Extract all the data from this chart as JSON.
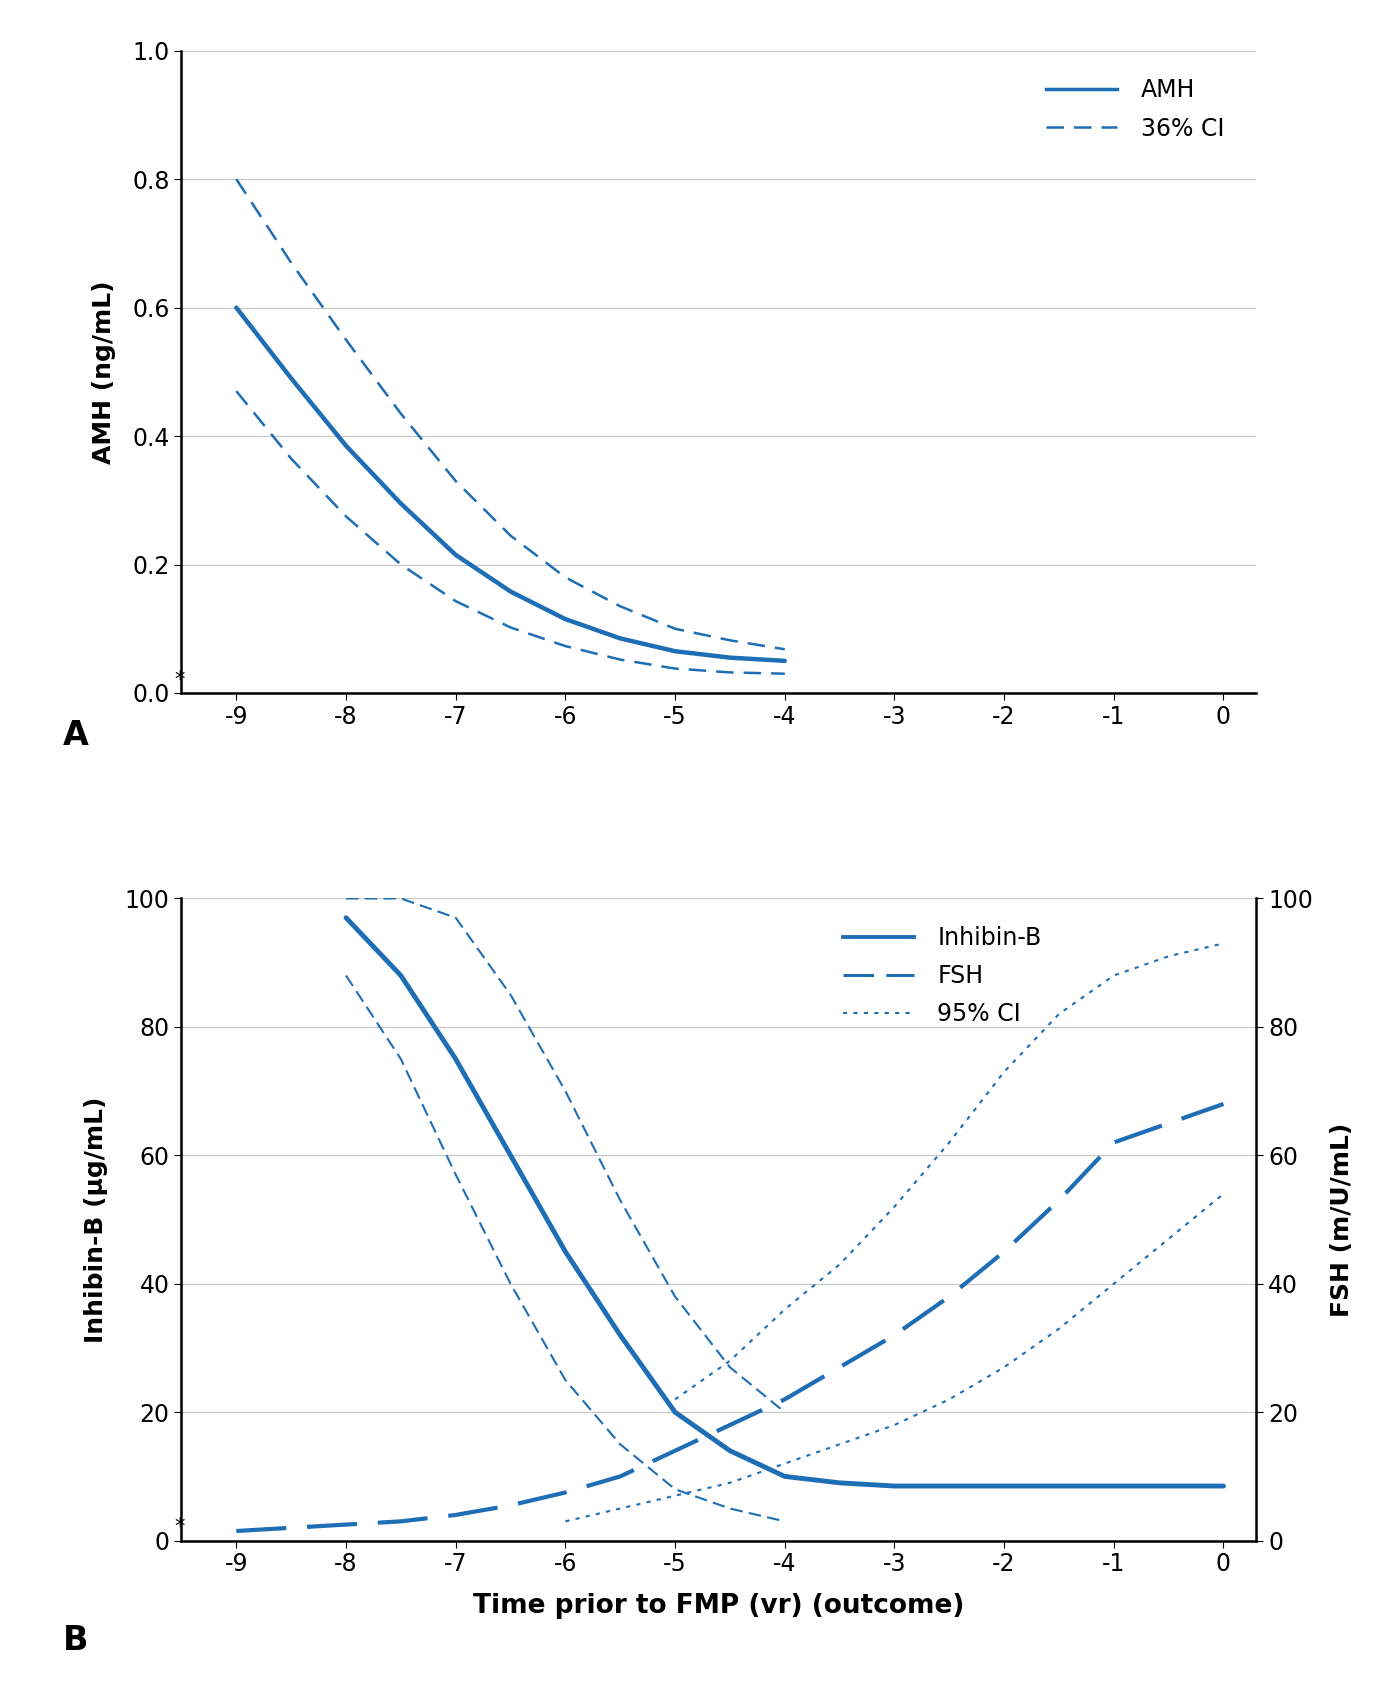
{
  "blue": "#1e6eb5",
  "panel_A": {
    "label": "A",
    "ylabel": "AMH (ng/mL)",
    "ylim": [
      0.0,
      1.0
    ],
    "yticks": [
      0.0,
      0.2,
      0.4,
      0.6,
      0.8,
      1.0
    ],
    "xlim": [
      -9.5,
      0.3
    ],
    "xticks": [
      -9,
      -8,
      -7,
      -6,
      -5,
      -4,
      -3,
      -2,
      -1,
      0
    ],
    "amh_x": [
      -9.0,
      -8.5,
      -8.0,
      -7.5,
      -7.0,
      -6.5,
      -6.0,
      -5.5,
      -5.0,
      -4.5,
      -4.0
    ],
    "amh_y": [
      0.6,
      0.49,
      0.385,
      0.295,
      0.215,
      0.158,
      0.115,
      0.085,
      0.065,
      0.055,
      0.05
    ],
    "ci_upper_x": [
      -9.0,
      -8.5,
      -8.0,
      -7.5,
      -7.0,
      -6.5,
      -6.0,
      -5.5,
      -5.0,
      -4.5,
      -4.0
    ],
    "ci_upper_y": [
      0.8,
      0.67,
      0.55,
      0.435,
      0.33,
      0.245,
      0.18,
      0.135,
      0.1,
      0.082,
      0.068
    ],
    "ci_lower_x": [
      -9.0,
      -8.5,
      -8.0,
      -7.5,
      -7.0,
      -6.5,
      -6.0,
      -5.5,
      -5.0,
      -4.5,
      -4.0
    ],
    "ci_lower_y": [
      0.47,
      0.365,
      0.275,
      0.2,
      0.143,
      0.102,
      0.073,
      0.052,
      0.038,
      0.032,
      0.03
    ],
    "legend_label_amh": "AMH",
    "legend_label_ci": "36% CI",
    "asterisk_text": "*"
  },
  "panel_B": {
    "label": "B",
    "ylabel_left": "Inhibin-B (µg/mL)",
    "ylabel_right": "FSH (m/U/mL)",
    "xlabel": "Time prior to FMP (vr) (outcome)",
    "ylim": [
      0.0,
      100.0
    ],
    "yticks": [
      0,
      20,
      40,
      60,
      80,
      100
    ],
    "xlim": [
      -9.5,
      0.3
    ],
    "xticks": [
      -9,
      -8,
      -7,
      -6,
      -5,
      -4,
      -3,
      -2,
      -1,
      0
    ],
    "inhibin_x": [
      -8.0,
      -7.5,
      -7.0,
      -6.5,
      -6.0,
      -5.5,
      -5.0,
      -4.5,
      -4.0,
      -3.5,
      -3.0,
      -2.5,
      -2.0,
      -1.5,
      -1.0,
      -0.5,
      0.0
    ],
    "inhibin_y": [
      97,
      88,
      75,
      60,
      45,
      32,
      20,
      14,
      10,
      9,
      8.5,
      8.5,
      8.5,
      8.5,
      8.5,
      8.5,
      8.5
    ],
    "inhibin_ci_upper_x": [
      -8.0,
      -7.5,
      -7.0,
      -6.5,
      -6.0,
      -5.5,
      -5.0,
      -4.5,
      -4.0
    ],
    "inhibin_ci_upper_y": [
      100,
      100,
      97,
      85,
      70,
      53,
      38,
      27,
      20
    ],
    "inhibin_ci_lower_x": [
      -8.0,
      -7.5,
      -7.0,
      -6.5,
      -6.0,
      -5.5,
      -5.0,
      -4.5,
      -4.0
    ],
    "inhibin_ci_lower_y": [
      88,
      75,
      57,
      40,
      25,
      15,
      8,
      5,
      3
    ],
    "fsh_x": [
      -9.0,
      -8.5,
      -8.0,
      -7.5,
      -7.0,
      -6.5,
      -6.0,
      -5.5,
      -5.0,
      -4.5,
      -4.0,
      -3.5,
      -3.0,
      -2.5,
      -2.0,
      -1.5,
      -1.0,
      -0.5,
      0.0
    ],
    "fsh_y": [
      1.5,
      2.0,
      2.5,
      3.0,
      4.0,
      5.5,
      7.5,
      10,
      14,
      18,
      22,
      27,
      32,
      38,
      45,
      53,
      62,
      65,
      68
    ],
    "fsh_ci_upper_x": [
      -5.0,
      -4.5,
      -4.0,
      -3.5,
      -3.0,
      -2.5,
      -2.0,
      -1.5,
      -1.0,
      -0.5,
      0.0
    ],
    "fsh_ci_upper_y": [
      22,
      28,
      36,
      43,
      52,
      62,
      73,
      82,
      88,
      91,
      93
    ],
    "fsh_ci_lower_x": [
      -6.0,
      -5.5,
      -5.0,
      -4.5,
      -4.0,
      -3.5,
      -3.0,
      -2.5,
      -2.0,
      -1.5,
      -1.0,
      -0.5,
      0.0
    ],
    "fsh_ci_lower_y": [
      3,
      5,
      7,
      9,
      12,
      15,
      18,
      22,
      27,
      33,
      40,
      47,
      54
    ],
    "legend_label_inhibin": "Inhibin-B",
    "legend_label_fsh": "FSH",
    "legend_label_ci": "95% CI",
    "asterisk_text": "*"
  },
  "background_color": "#ffffff",
  "grid_color": "#c8c8c8",
  "axis_color": "#000000"
}
